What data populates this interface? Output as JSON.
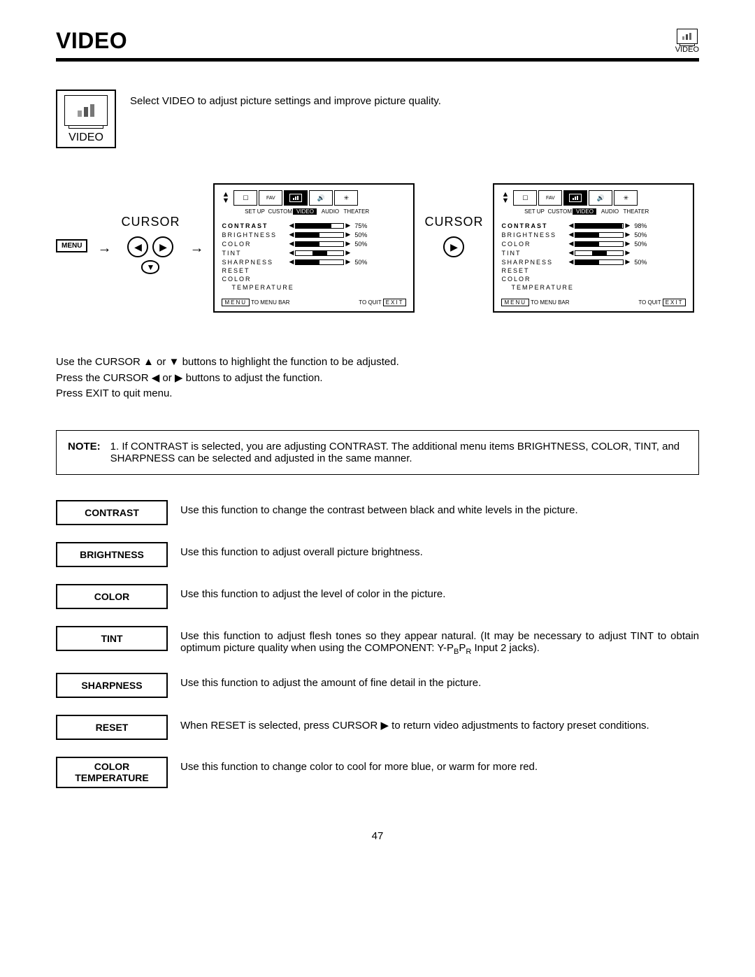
{
  "header": {
    "title": "VIDEO",
    "icon_label": "VIDEO"
  },
  "intro": {
    "icon_label": "VIDEO",
    "text": "Select VIDEO to adjust picture settings and improve picture quality."
  },
  "cursor_label": "CURSOR",
  "menu_button_label": "MENU",
  "osd": {
    "tabs": [
      "SET UP",
      "CUSTOM",
      "VIDEO",
      "AUDIO",
      "THEATER"
    ],
    "selected_tab_index": 2,
    "items": [
      {
        "name": "CONTRAST",
        "bold": true
      },
      {
        "name": "BRIGHTNESS"
      },
      {
        "name": "COLOR"
      },
      {
        "name": "TINT"
      },
      {
        "name": "SHARPNESS"
      },
      {
        "name": "RESET"
      },
      {
        "name": "COLOR"
      },
      {
        "name": "TEMPERATURE",
        "indent": true
      }
    ],
    "panelA": {
      "contrast": {
        "fill": 75,
        "pct": "75%"
      },
      "brightness": {
        "fill": 50,
        "pct": "50%"
      },
      "color": {
        "fill": 50,
        "pct": "50%"
      },
      "tint": {
        "center": true,
        "pct": ""
      },
      "sharpness": {
        "fill": 50,
        "pct": "50%"
      }
    },
    "panelB": {
      "contrast": {
        "fill": 98,
        "pct": "98%"
      },
      "brightness": {
        "fill": 50,
        "pct": "50%"
      },
      "color": {
        "fill": 50,
        "pct": "50%"
      },
      "tint": {
        "center": true,
        "pct": ""
      },
      "sharpness": {
        "fill": 50,
        "pct": "50%"
      }
    },
    "footer": {
      "menu_btn": "MENU",
      "menu_text": "TO MENU BAR",
      "quit_text": "TO QUIT",
      "exit_btn": "EXIT"
    }
  },
  "instructions": {
    "line1": "Use the CURSOR ▲ or ▼ buttons to highlight the function to be adjusted.",
    "line2": "Press the CURSOR ◀ or ▶ buttons to adjust the function.",
    "line3": "Press EXIT to quit menu."
  },
  "note": {
    "label": "NOTE:",
    "text": "1. If CONTRAST is selected, you are adjusting CONTRAST.  The additional menu items BRIGHTNESS, COLOR, TINT, and SHARPNESS can be selected and adjusted in the same manner."
  },
  "definitions": [
    {
      "label": "CONTRAST",
      "text": "Use this function to change the contrast between black and white levels in the picture."
    },
    {
      "label": "BRIGHTNESS",
      "text": "Use this function to adjust overall picture brightness."
    },
    {
      "label": "COLOR",
      "text": "Use this function to adjust the level of color in the picture."
    },
    {
      "label": "TINT",
      "text_html": "tint"
    },
    {
      "label": "SHARPNESS",
      "text": "Use this function to adjust the amount of fine detail in the picture."
    },
    {
      "label": "RESET",
      "text": "When RESET is selected, press CURSOR ▶ to return video adjustments to factory preset conditions."
    },
    {
      "label": "COLOR\nTEMPERATURE",
      "two": true,
      "text": "Use this function to change color to cool for more blue, or warm for more red."
    }
  ],
  "tint_text": {
    "p1": "Use this function to adjust flesh tones so they appear natural. (It may be necessary to adjust TINT to obtain optimum picture quality when using the COMPONENT: Y-P",
    "sub1": "B",
    "p2": "P",
    "sub2": "R",
    "p3": " Input 2 jacks)."
  },
  "page_number": "47",
  "colors": {
    "text": "#000000",
    "bg": "#ffffff"
  }
}
